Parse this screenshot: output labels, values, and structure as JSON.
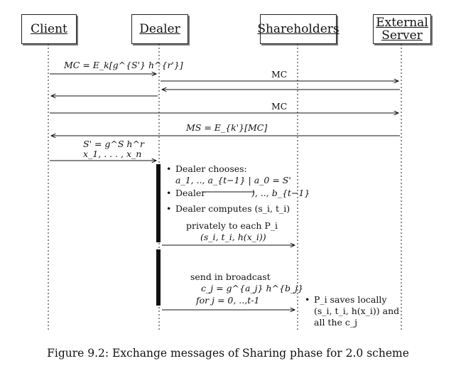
{
  "actors": {
    "client": "Client",
    "dealer": "Dealer",
    "shareholders": "Shareholders",
    "external_server_line1": "External",
    "external_server_line2": "Server"
  },
  "messages": {
    "m1": "MC = E_k[g^{S'} h^{r'}]",
    "m2": "MC",
    "m5": "MC",
    "m6": "MS = E_{k'}[MC]",
    "m7_line1": "S' = g^S h^r",
    "m7_line2": "x_1, . . . , x_n"
  },
  "dealer_notes": {
    "b1_line1": "Dealer chooses:",
    "b1_line2": "a_1, .., a_{t−1} | a_0 = S'",
    "b2_prefix": "Dealer",
    "b2_suffix": "), .., b_{t−1}",
    "b3": "Dealer computes (s_i, t_i)"
  },
  "private_send": {
    "line1": "privately to each P_i",
    "line2": "(s_i, t_i, h(x_i))"
  },
  "broadcast": {
    "line1": "send in broadcast",
    "line2": "c_j = g^{a_j} h^{b_j}",
    "line3": "for j = 0, ..,t-1"
  },
  "shareholder_note": {
    "line1": "P_i saves locally",
    "line2": "(s_i, t_i, h(x_i)) and",
    "line3": "all the c_j"
  },
  "caption": "Figure 9.2: Exchange messages of Sharing phase for 2.0 scheme"
}
